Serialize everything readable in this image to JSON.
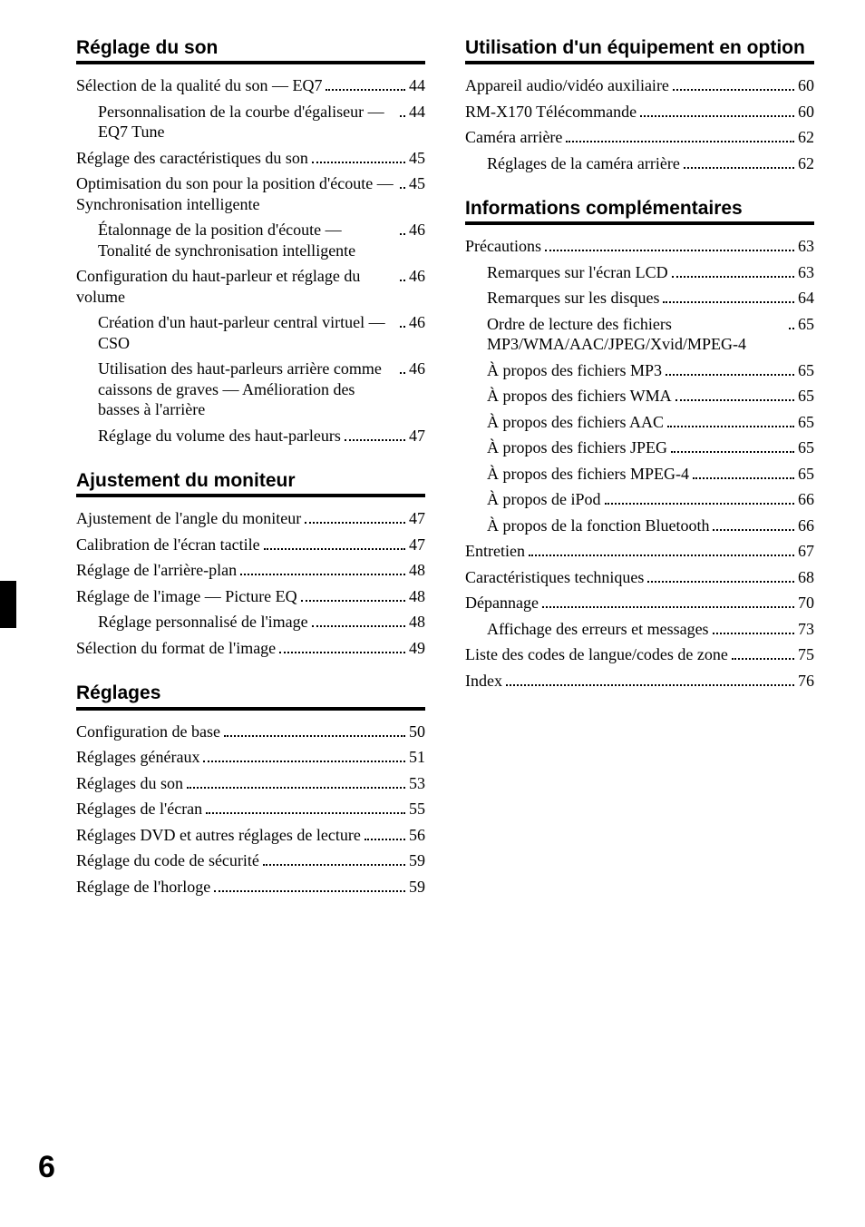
{
  "page_number": "6",
  "colors": {
    "text": "#000000",
    "background": "#ffffff",
    "rule": "#000000"
  },
  "typography": {
    "body_family": "Times New Roman",
    "heading_family": "Helvetica",
    "heading_size_pt": 16,
    "body_size_pt": 13,
    "page_number_size_pt": 26
  },
  "left_column": [
    {
      "title": "Réglage du son",
      "entries": [
        {
          "label": "Sélection de la qualité du son — EQ7",
          "page": "44",
          "indent": 0
        },
        {
          "label": "Personnalisation de la courbe d'égaliseur — EQ7 Tune",
          "page": "44",
          "indent": 1
        },
        {
          "label": "Réglage des caractéristiques du son",
          "page": "45",
          "indent": 0,
          "topgap": true
        },
        {
          "label": "Optimisation du son pour la position d'écoute — Synchronisation intelligente",
          "page": "45",
          "indent": 0,
          "topgap": true
        },
        {
          "label": "Étalonnage de la position d'écoute — Tonalité de synchronisation intelligente",
          "page": "46",
          "indent": 1
        },
        {
          "label": "Configuration du haut-parleur et réglage du volume",
          "page": "46",
          "indent": 0,
          "topgap": true
        },
        {
          "label": "Création d'un haut-parleur central virtuel — CSO",
          "page": "46",
          "indent": 1
        },
        {
          "label": "Utilisation des haut-parleurs arrière comme caissons de graves — Amélioration des basses à l'arrière",
          "page": "46",
          "indent": 1
        },
        {
          "label": "Réglage du volume des haut-parleurs",
          "page": "47",
          "indent": 1
        }
      ]
    },
    {
      "title": "Ajustement du moniteur",
      "entries": [
        {
          "label": "Ajustement de l'angle du moniteur",
          "page": "47",
          "indent": 0
        },
        {
          "label": "Calibration de l'écran tactile",
          "page": "47",
          "indent": 0,
          "topgap": true
        },
        {
          "label": "Réglage de l'arrière-plan",
          "page": "48",
          "indent": 0,
          "topgap": true
        },
        {
          "label": "Réglage de l'image — Picture EQ",
          "page": "48",
          "indent": 0,
          "topgap": true
        },
        {
          "label": "Réglage personnalisé de l'image",
          "page": "48",
          "indent": 1
        },
        {
          "label": "Sélection du format de l'image",
          "page": "49",
          "indent": 0,
          "topgap": true
        }
      ]
    },
    {
      "title": "Réglages",
      "entries": [
        {
          "label": "Configuration de base",
          "page": "50",
          "indent": 0
        },
        {
          "label": "Réglages généraux",
          "page": "51",
          "indent": 0,
          "topgap": true
        },
        {
          "label": "Réglages du son",
          "page": "53",
          "indent": 0,
          "topgap": true
        },
        {
          "label": "Réglages de l'écran",
          "page": "55",
          "indent": 0,
          "topgap": true
        },
        {
          "label": "Réglages DVD et autres réglages de lecture",
          "page": "56",
          "indent": 0,
          "topgap": true
        },
        {
          "label": "Réglage du code de sécurité",
          "page": "59",
          "indent": 0,
          "topgap": true
        },
        {
          "label": "Réglage de l'horloge",
          "page": "59",
          "indent": 0,
          "topgap": true
        }
      ]
    }
  ],
  "right_column": [
    {
      "title": "Utilisation d'un équipement en option",
      "entries": [
        {
          "label": "Appareil audio/vidéo auxiliaire",
          "page": "60",
          "indent": 0
        },
        {
          "label": "RM-X170 Télécommande",
          "page": "60",
          "indent": 0,
          "topgap": true
        },
        {
          "label": "Caméra arrière",
          "page": "62",
          "indent": 0,
          "topgap": true
        },
        {
          "label": "Réglages de la caméra arrière",
          "page": "62",
          "indent": 1
        }
      ]
    },
    {
      "title": "Informations complémentaires",
      "entries": [
        {
          "label": "Précautions",
          "page": "63",
          "indent": 0
        },
        {
          "label": "Remarques sur l'écran LCD",
          "page": "63",
          "indent": 1
        },
        {
          "label": "Remarques sur les disques",
          "page": "64",
          "indent": 1
        },
        {
          "label": "Ordre de lecture des fichiers MP3/WMA/AAC/JPEG/Xvid/MPEG-4",
          "page": "65",
          "indent": 1
        },
        {
          "label": "À propos des fichiers MP3",
          "page": "65",
          "indent": 1
        },
        {
          "label": "À propos des fichiers WMA",
          "page": "65",
          "indent": 1
        },
        {
          "label": "À propos des fichiers AAC",
          "page": "65",
          "indent": 1
        },
        {
          "label": "À propos des fichiers JPEG",
          "page": "65",
          "indent": 1
        },
        {
          "label": "À propos des fichiers MPEG-4",
          "page": "65",
          "indent": 1
        },
        {
          "label": "À propos de iPod",
          "page": "66",
          "indent": 1
        },
        {
          "label": "À propos de la fonction Bluetooth",
          "page": "66",
          "indent": 1
        },
        {
          "label": "Entretien",
          "page": "67",
          "indent": 0,
          "topgap": true
        },
        {
          "label": "Caractéristiques techniques",
          "page": "68",
          "indent": 0,
          "topgap": true
        },
        {
          "label": "Dépannage",
          "page": "70",
          "indent": 0,
          "topgap": true
        },
        {
          "label": "Affichage des erreurs et messages",
          "page": "73",
          "indent": 1
        },
        {
          "label": "Liste des codes de langue/codes de zone",
          "page": "75",
          "indent": 0,
          "topgap": true
        },
        {
          "label": "Index",
          "page": "76",
          "indent": 0,
          "topgap": true
        }
      ]
    }
  ]
}
